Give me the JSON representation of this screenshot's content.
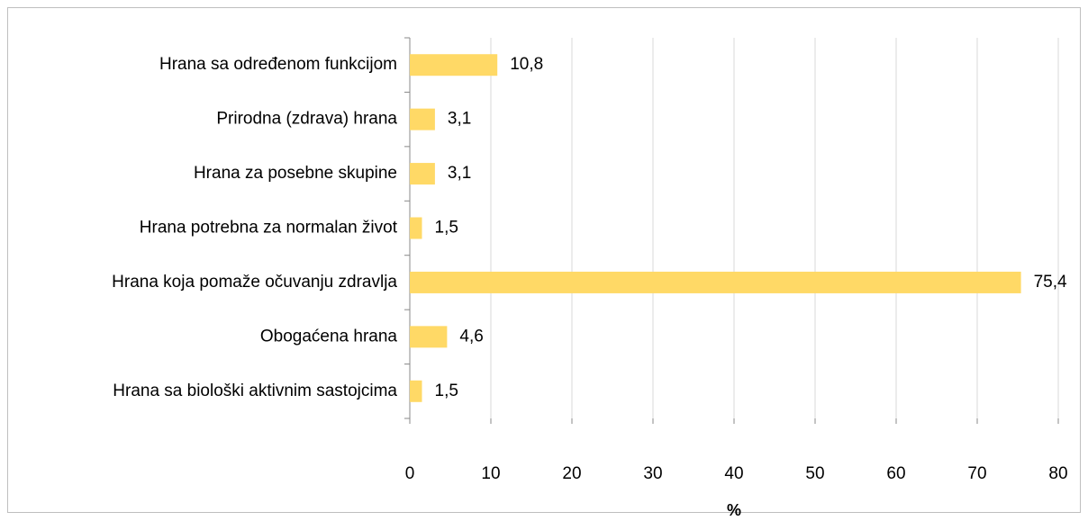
{
  "chart_data": {
    "type": "bar",
    "orientation": "horizontal",
    "categories": [
      "Hrana sa određenom funkcijom",
      "Prirodna (zdrava) hrana",
      "Hrana za posebne skupine",
      "Hrana potrebna za normalan život",
      "Hrana koja pomaže očuvanju zdravlja",
      "Obogaćena hrana",
      "Hrana sa biološki aktivnim sastojcima"
    ],
    "values": [
      10.8,
      3.1,
      3.1,
      1.5,
      75.4,
      4.6,
      1.5
    ],
    "value_labels": [
      "10,8",
      "3,1",
      "3,1",
      "1,5",
      "75,4",
      "4,6",
      "1,5"
    ],
    "color": "#ffd966",
    "xlabel": "%",
    "xlim": [
      0,
      80
    ],
    "xticks": [
      0,
      10,
      20,
      30,
      40,
      50,
      60,
      70,
      80
    ],
    "grid": true
  }
}
